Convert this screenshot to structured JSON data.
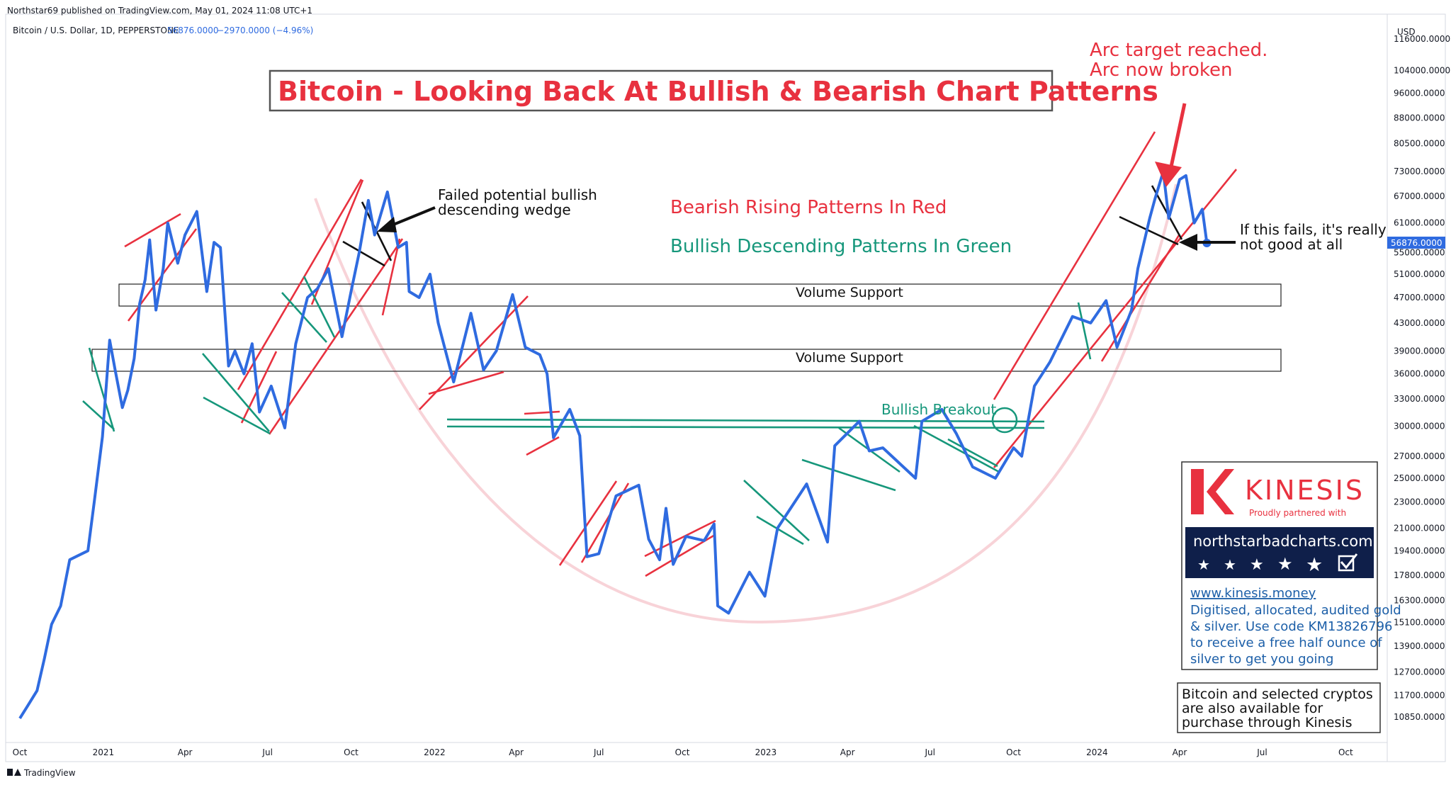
{
  "header": {
    "publisher": "Northstar69 published on TradingView.com, May 01, 2024 11:08 UTC+1",
    "symbol": "Bitcoin / U.S. Dollar, 1D, PEPPERSTONE",
    "last_price": "56876.0000",
    "change": "−2970.0000 (−4.96%)"
  },
  "footer": {
    "brand": "TradingView"
  },
  "chart_data": {
    "type": "line",
    "title": "Bitcoin - Looking Back At Bullish & Bearish Chart Patterns",
    "yscale": "log",
    "currency": "USD",
    "ylim": [
      10000,
      125000
    ],
    "xlim": [
      "2020-10-01",
      "2024-11-15"
    ],
    "last_price_label": "56876.0000",
    "yticks": [
      116000,
      104000,
      96000,
      88000,
      80500,
      73000,
      67000,
      61000,
      55000,
      51000,
      47000,
      43000,
      39000,
      36000,
      33000,
      30000,
      27000,
      25000,
      23000,
      21000,
      19400,
      17800,
      16300,
      15100,
      13900,
      12700,
      11700,
      10850
    ],
    "xticks": [
      {
        "date": "2020-10-01",
        "label": "Oct"
      },
      {
        "date": "2021-01-01",
        "label": "2021"
      },
      {
        "date": "2021-04-01",
        "label": "Apr"
      },
      {
        "date": "2021-07-01",
        "label": "Jul"
      },
      {
        "date": "2021-10-01",
        "label": "Oct"
      },
      {
        "date": "2022-01-01",
        "label": "2022"
      },
      {
        "date": "2022-04-01",
        "label": "Apr"
      },
      {
        "date": "2022-07-01",
        "label": "Jul"
      },
      {
        "date": "2022-10-01",
        "label": "Oct"
      },
      {
        "date": "2023-01-01",
        "label": "2023"
      },
      {
        "date": "2023-04-01",
        "label": "Apr"
      },
      {
        "date": "2023-07-01",
        "label": "Jul"
      },
      {
        "date": "2023-10-01",
        "label": "Oct"
      },
      {
        "date": "2024-01-01",
        "label": "2024"
      },
      {
        "date": "2024-04-01",
        "label": "Apr"
      },
      {
        "date": "2024-07-01",
        "label": "Jul"
      },
      {
        "date": "2024-10-01",
        "label": "Oct"
      }
    ],
    "series": [
      {
        "color": "#2f6be0",
        "points": [
          [
            "2020-10-01",
            10800
          ],
          [
            "2020-10-10",
            11300
          ],
          [
            "2020-10-20",
            11900
          ],
          [
            "2020-10-28",
            13300
          ],
          [
            "2020-11-05",
            15000
          ],
          [
            "2020-11-15",
            16000
          ],
          [
            "2020-11-25",
            18800
          ],
          [
            "2020-12-05",
            19100
          ],
          [
            "2020-12-15",
            19400
          ],
          [
            "2020-12-22",
            23000
          ],
          [
            "2020-12-31",
            28900
          ],
          [
            "2021-01-08",
            40500
          ],
          [
            "2021-01-14",
            36500
          ],
          [
            "2021-01-22",
            32000
          ],
          [
            "2021-01-28",
            34000
          ],
          [
            "2021-02-04",
            38000
          ],
          [
            "2021-02-10",
            46000
          ],
          [
            "2021-02-16",
            50000
          ],
          [
            "2021-02-21",
            57500
          ],
          [
            "2021-02-28",
            45000
          ],
          [
            "2021-03-08",
            52000
          ],
          [
            "2021-03-13",
            61000
          ],
          [
            "2021-03-24",
            53000
          ],
          [
            "2021-04-01",
            58500
          ],
          [
            "2021-04-14",
            63500
          ],
          [
            "2021-04-25",
            48000
          ],
          [
            "2021-05-03",
            57000
          ],
          [
            "2021-05-10",
            56000
          ],
          [
            "2021-05-19",
            37000
          ],
          [
            "2021-05-26",
            39000
          ],
          [
            "2021-06-05",
            36000
          ],
          [
            "2021-06-14",
            40000
          ],
          [
            "2021-06-22",
            31500
          ],
          [
            "2021-07-05",
            34500
          ],
          [
            "2021-07-20",
            29800
          ],
          [
            "2021-08-01",
            40000
          ],
          [
            "2021-08-14",
            47000
          ],
          [
            "2021-08-25",
            48500
          ],
          [
            "2021-09-06",
            52000
          ],
          [
            "2021-09-21",
            41000
          ],
          [
            "2021-10-01",
            48000
          ],
          [
            "2021-10-10",
            55000
          ],
          [
            "2021-10-20",
            66000
          ],
          [
            "2021-10-27",
            58500
          ],
          [
            "2021-11-10",
            68000
          ],
          [
            "2021-11-22",
            56000
          ],
          [
            "2021-12-01",
            57000
          ],
          [
            "2021-12-04",
            48000
          ],
          [
            "2021-12-15",
            47000
          ],
          [
            "2021-12-27",
            51000
          ],
          [
            "2022-01-05",
            43000
          ],
          [
            "2022-01-22",
            35000
          ],
          [
            "2022-02-10",
            44500
          ],
          [
            "2022-02-24",
            36500
          ],
          [
            "2022-03-10",
            39000
          ],
          [
            "2022-03-28",
            47500
          ],
          [
            "2022-04-11",
            39500
          ],
          [
            "2022-04-27",
            38500
          ],
          [
            "2022-05-05",
            36000
          ],
          [
            "2022-05-12",
            28800
          ],
          [
            "2022-05-30",
            31800
          ],
          [
            "2022-06-10",
            29000
          ],
          [
            "2022-06-18",
            19000
          ],
          [
            "2022-07-01",
            19200
          ],
          [
            "2022-07-20",
            23500
          ],
          [
            "2022-08-14",
            24400
          ],
          [
            "2022-08-25",
            20200
          ],
          [
            "2022-09-06",
            18800
          ],
          [
            "2022-09-13",
            22500
          ],
          [
            "2022-09-21",
            18500
          ],
          [
            "2022-10-05",
            20400
          ],
          [
            "2022-10-25",
            20100
          ],
          [
            "2022-11-05",
            21300
          ],
          [
            "2022-11-09",
            16000
          ],
          [
            "2022-11-21",
            15600
          ],
          [
            "2022-12-14",
            18000
          ],
          [
            "2022-12-31",
            16550
          ],
          [
            "2023-01-14",
            21000
          ],
          [
            "2023-02-15",
            24500
          ],
          [
            "2023-03-10",
            20000
          ],
          [
            "2023-03-18",
            28000
          ],
          [
            "2023-04-14",
            30500
          ],
          [
            "2023-04-25",
            27500
          ],
          [
            "2023-05-10",
            27800
          ],
          [
            "2023-06-15",
            25000
          ],
          [
            "2023-06-22",
            30500
          ],
          [
            "2023-07-14",
            31800
          ],
          [
            "2023-07-30",
            29200
          ],
          [
            "2023-08-17",
            26000
          ],
          [
            "2023-09-11",
            25000
          ],
          [
            "2023-10-01",
            27800
          ],
          [
            "2023-10-10",
            27000
          ],
          [
            "2023-10-24",
            34500
          ],
          [
            "2023-11-10",
            37500
          ],
          [
            "2023-12-05",
            44000
          ],
          [
            "2023-12-25",
            43000
          ],
          [
            "2024-01-11",
            46500
          ],
          [
            "2024-01-23",
            39500
          ],
          [
            "2024-02-08",
            45000
          ],
          [
            "2024-02-15",
            52000
          ],
          [
            "2024-02-28",
            62000
          ],
          [
            "2024-03-05",
            66500
          ],
          [
            "2024-03-14",
            73000
          ],
          [
            "2024-03-20",
            62000
          ],
          [
            "2024-04-01",
            71000
          ],
          [
            "2024-04-08",
            72000
          ],
          [
            "2024-04-17",
            61000
          ],
          [
            "2024-04-26",
            64000
          ],
          [
            "2024-05-01",
            56876
          ]
        ]
      }
    ],
    "annotations": {
      "title": "Bitcoin - Looking Back At Bullish & Bearish Chart Patterns",
      "arc_note": [
        "Arc target reached.",
        "Arc now broken"
      ],
      "failed_wedge": [
        "Failed  potential bullish",
        "descending wedge"
      ],
      "legend_red": "Bearish Rising Patterns In Red",
      "legend_green": "Bullish Descending Patterns In Green",
      "if_fails": [
        "If this fails, it's really",
        "not good at all"
      ],
      "volume_support_upper": "Volume Support",
      "volume_support_lower": "Volume Support",
      "bullish_breakout": "Bullish Breakout"
    },
    "colors": {
      "price": "#2f6be0",
      "bearish": "#e8313f",
      "bullish": "#16977b",
      "arc": "#f8d3d8",
      "last_price_tag": "#2f6be0"
    }
  },
  "sponsor": {
    "brand": "KINESIS",
    "partner_text": "Proudly partnered with",
    "site": "northstarbadcharts.com",
    "link": "www.kinesis.money",
    "promo_lines": [
      "Digitised, allocated, audited gold",
      "& silver. Use code KM13826796",
      "to receive a free half ounce of",
      "silver to get you going"
    ],
    "crypto_note": [
      "Bitcoin and selected cryptos",
      "are also available for",
      "purchase through Kinesis"
    ]
  }
}
